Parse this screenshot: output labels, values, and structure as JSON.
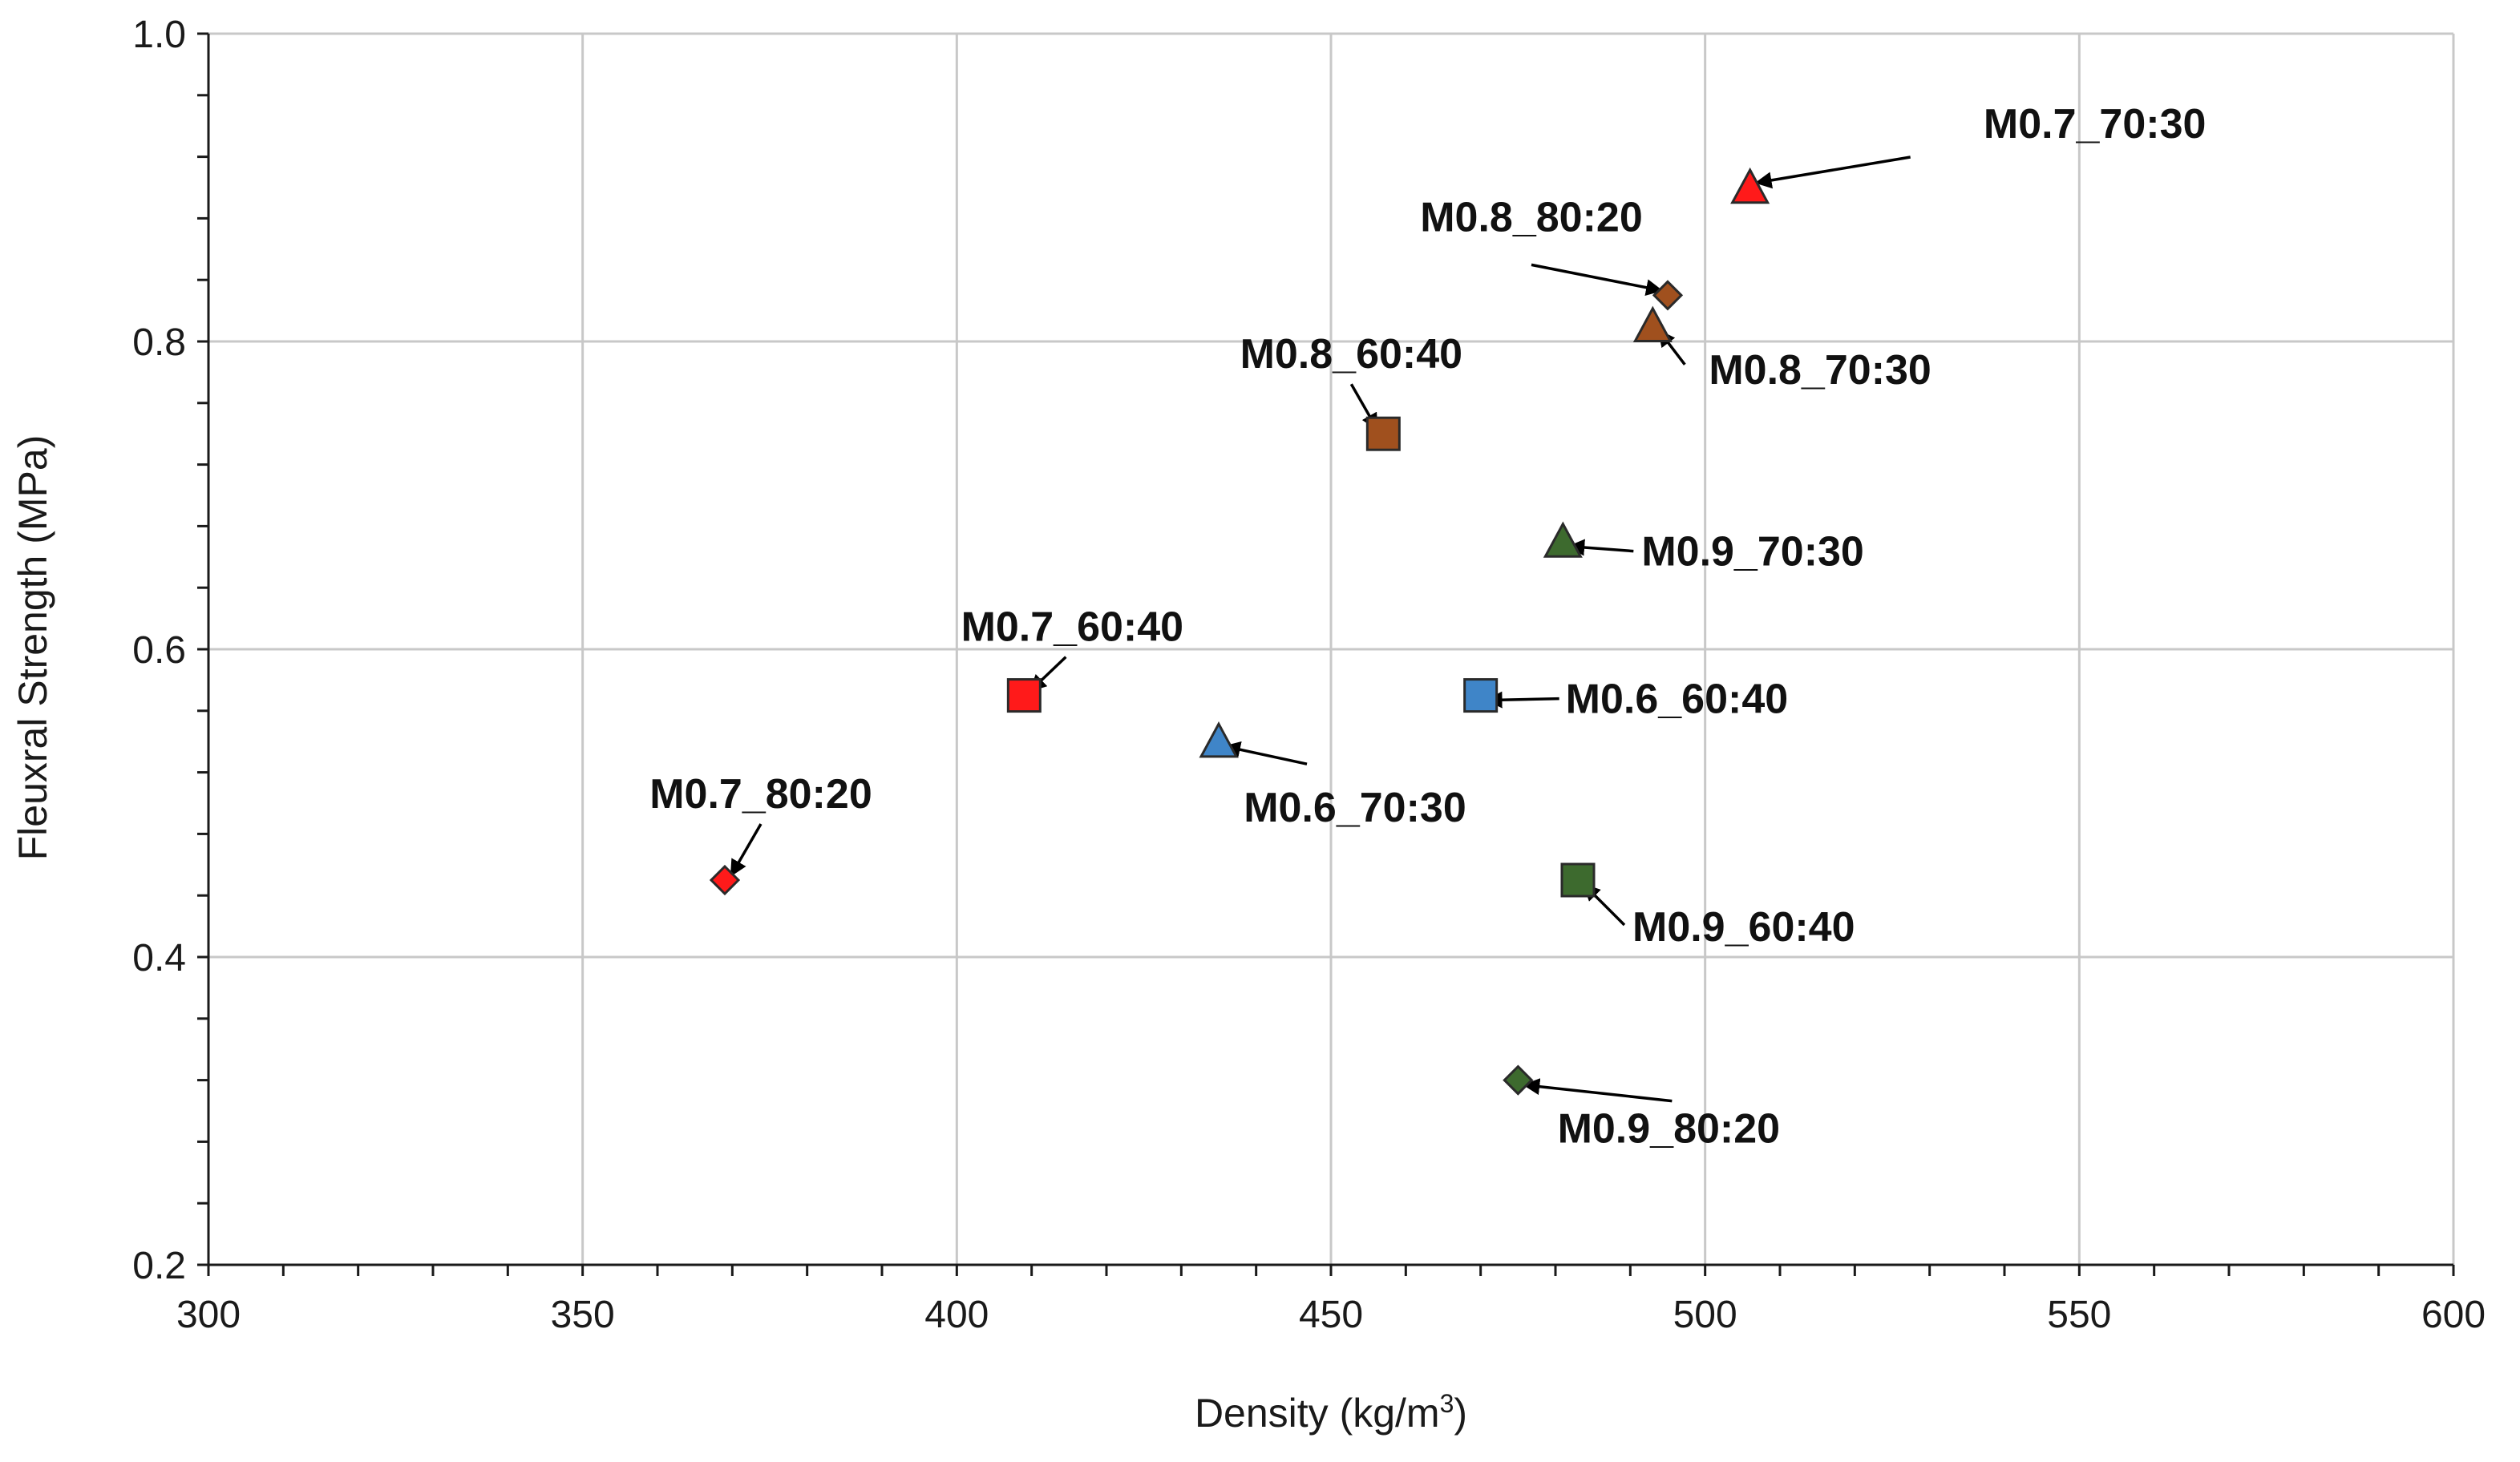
{
  "chart_data": {
    "type": "scatter",
    "title": "",
    "xlabel": "Density (kg/m",
    "xlabel_superscript": "3",
    "xlabel_suffix": ")",
    "ylabel": "Fleuxral Strength (MPa)",
    "xlim": [
      300,
      600
    ],
    "ylim": [
      0.2,
      1.0
    ],
    "x_ticks": [
      300,
      350,
      400,
      450,
      500,
      550,
      600
    ],
    "x_tick_labels": [
      "300",
      "350",
      "400",
      "450",
      "500",
      "550",
      "600"
    ],
    "y_ticks": [
      0.2,
      0.4,
      0.6,
      0.8,
      1.0
    ],
    "y_tick_labels": [
      "0.2",
      "0.4",
      "0.6",
      "0.8",
      "1.0"
    ],
    "x_minor_step": 10,
    "y_minor_step": 0.04,
    "grid": true,
    "colors": {
      "red": "#ff1a1a",
      "brown": "#a0501e",
      "green": "#3d6a2e",
      "blue": "#3f85c8"
    },
    "points": [
      {
        "label": "M0.7_70:30",
        "x": 506,
        "y": 0.9,
        "shape": "triangle",
        "color": "red"
      },
      {
        "label": "M0.8_80:20",
        "x": 495,
        "y": 0.83,
        "shape": "diamond",
        "color": "brown"
      },
      {
        "label": "M0.8_70:30",
        "x": 493,
        "y": 0.81,
        "shape": "triangle",
        "color": "brown"
      },
      {
        "label": "M0.8_60:40",
        "x": 457,
        "y": 0.74,
        "shape": "square",
        "color": "brown"
      },
      {
        "label": "M0.9_70:30",
        "x": 481,
        "y": 0.67,
        "shape": "triangle",
        "color": "green"
      },
      {
        "label": "M0.6_60:40",
        "x": 470,
        "y": 0.57,
        "shape": "square",
        "color": "blue"
      },
      {
        "label": "M0.7_60:40",
        "x": 409,
        "y": 0.57,
        "shape": "square",
        "color": "red"
      },
      {
        "label": "M0.6_70:30",
        "x": 435,
        "y": 0.54,
        "shape": "triangle",
        "color": "blue"
      },
      {
        "label": "M0.7_80:20",
        "x": 369,
        "y": 0.45,
        "shape": "diamond",
        "color": "red"
      },
      {
        "label": "M0.9_60:40",
        "x": 483,
        "y": 0.45,
        "shape": "square",
        "color": "green"
      },
      {
        "label": "M0.9_80:20",
        "x": 475,
        "y": 0.32,
        "shape": "diamond",
        "color": "green"
      }
    ]
  }
}
